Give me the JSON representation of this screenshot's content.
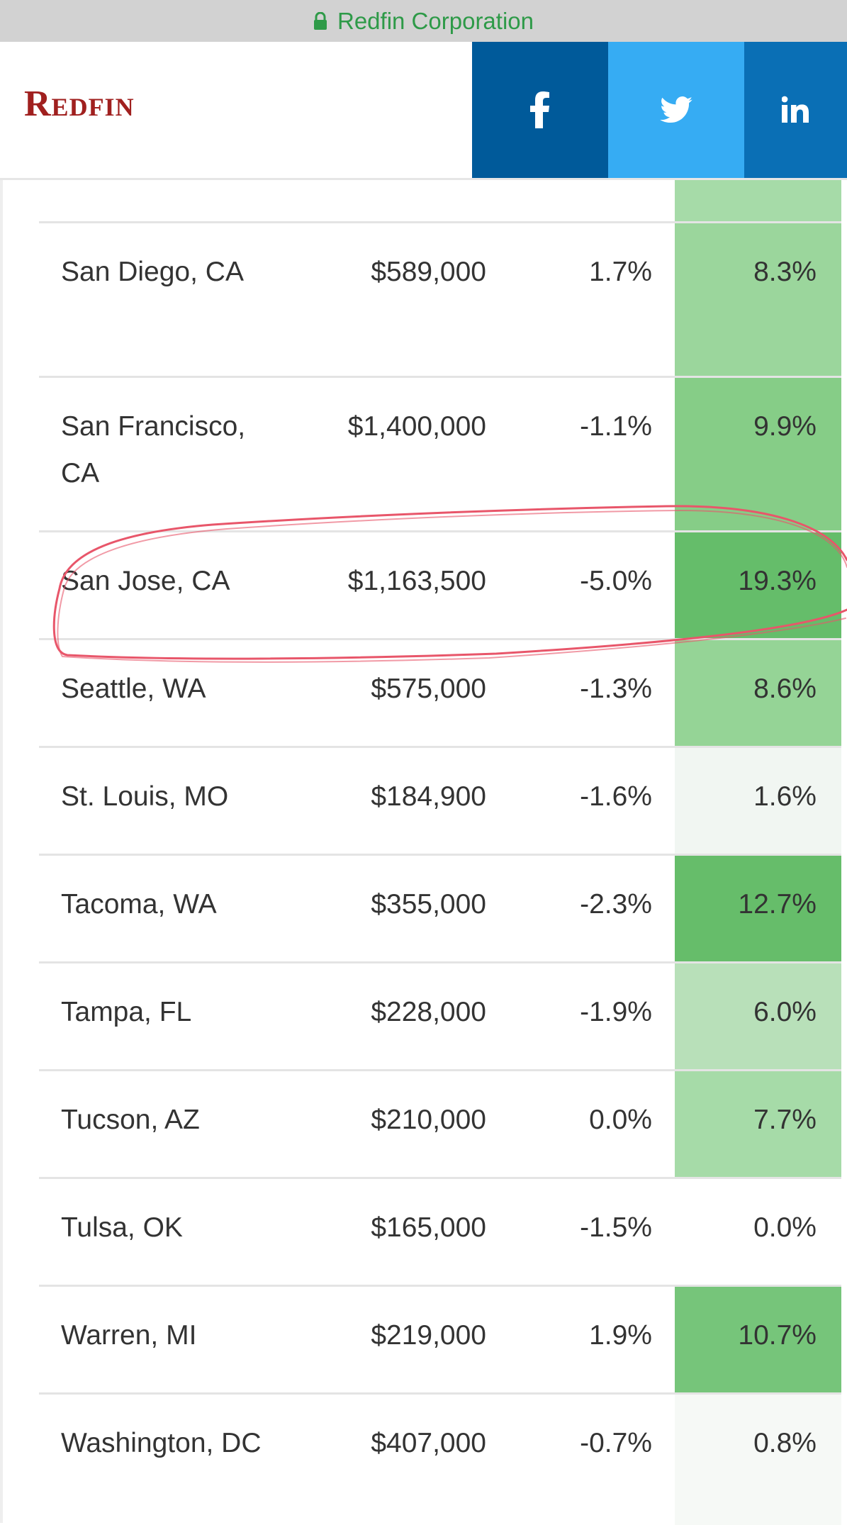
{
  "topbar": {
    "site": "Redfin Corporation",
    "lock_icon": "lock-icon"
  },
  "header": {
    "logo": "Redfin",
    "share": [
      "facebook-icon",
      "twitter-icon",
      "linkedin-icon"
    ]
  },
  "table": {
    "rows": [
      {
        "city": "San Diego, CA",
        "price": "$589,000",
        "change": "1.7%",
        "yoy": "8.3%",
        "color": "#9bd69c"
      },
      {
        "city": "San Francisco, CA",
        "price": "$1,400,000",
        "change": "-1.1%",
        "yoy": "9.9%",
        "color": "#86cd87"
      },
      {
        "city": "San Jose, CA",
        "price": "$1,163,500",
        "change": "-5.0%",
        "yoy": "19.3%",
        "color": "#65bd6a"
      },
      {
        "city": "Seattle, WA",
        "price": "$575,000",
        "change": "-1.3%",
        "yoy": "8.6%",
        "color": "#95d496"
      },
      {
        "city": "St. Louis, MO",
        "price": "$184,900",
        "change": "-1.6%",
        "yoy": "1.6%",
        "color": "#f1f6f2"
      },
      {
        "city": "Tacoma, WA",
        "price": "$355,000",
        "change": "-2.3%",
        "yoy": "12.7%",
        "color": "#66bd6a"
      },
      {
        "city": "Tampa, FL",
        "price": "$228,000",
        "change": "-1.9%",
        "yoy": "6.0%",
        "color": "#b8e0b9"
      },
      {
        "city": "Tucson, AZ",
        "price": "$210,000",
        "change": "0.0%",
        "yoy": "7.7%",
        "color": "#a6dba8"
      },
      {
        "city": "Tulsa, OK",
        "price": "$165,000",
        "change": "-1.5%",
        "yoy": "0.0%",
        "color": "#ffffff"
      },
      {
        "city": "Warren, MI",
        "price": "$219,000",
        "change": "1.9%",
        "yoy": "10.7%",
        "color": "#76c57a"
      },
      {
        "city": "Washington, DC",
        "price": "$407,000",
        "change": "-0.7%",
        "yoy": "0.8%",
        "color": "#f6f9f6"
      }
    ]
  },
  "annotation": {
    "highlight_color": "#e8566a"
  }
}
